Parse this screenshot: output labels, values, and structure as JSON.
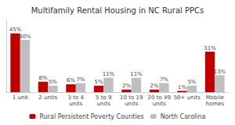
{
  "chart_data": {
    "type": "bar",
    "title": "Multifamily Rental Housing in NC Rural PPCs",
    "categories": [
      "1 unit",
      "2 units",
      "3 to 4\nunits",
      "5 to 9\nunits",
      "10 to 19\nunits",
      "20 to 49\nunits",
      "50+ units",
      "Mobile\nhomes"
    ],
    "series": [
      {
        "name": "Rural Persistent Poverty Counties",
        "color": "#c00000",
        "values": [
          45,
          8,
          6,
          5,
          2,
          2,
          1,
          31
        ],
        "value_labels": [
          "45%",
          "8%",
          "6%",
          "5%",
          "2%",
          "2%",
          "1%",
          "31%"
        ]
      },
      {
        "name": "North Carolina",
        "color": "#bfbfbf",
        "values": [
          40,
          5,
          7,
          11,
          11,
          7,
          5,
          13
        ],
        "value_labels": [
          "40%",
          "5%",
          "7%",
          "11%",
          "11%",
          "7%",
          "5%",
          "13%"
        ]
      }
    ],
    "ylim": [
      0,
      55
    ],
    "tick_labels": "x",
    "data_labels": true,
    "grid": false,
    "legend": "bottom"
  }
}
